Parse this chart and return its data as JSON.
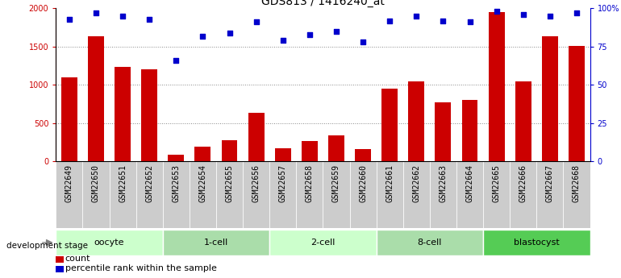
{
  "title": "GDS813 / 1416240_at",
  "samples": [
    "GSM22649",
    "GSM22650",
    "GSM22651",
    "GSM22652",
    "GSM22653",
    "GSM22654",
    "GSM22655",
    "GSM22656",
    "GSM22657",
    "GSM22658",
    "GSM22659",
    "GSM22660",
    "GSM22661",
    "GSM22662",
    "GSM22663",
    "GSM22664",
    "GSM22665",
    "GSM22666",
    "GSM22667",
    "GSM22668"
  ],
  "counts": [
    1100,
    1630,
    1230,
    1200,
    90,
    190,
    270,
    630,
    170,
    260,
    340,
    160,
    950,
    1040,
    770,
    800,
    1950,
    1040,
    1640,
    1510
  ],
  "percentiles": [
    93,
    97,
    95,
    93,
    66,
    82,
    84,
    91,
    79,
    83,
    85,
    78,
    92,
    95,
    92,
    91,
    98,
    96,
    95,
    97
  ],
  "groups": [
    {
      "label": "oocyte",
      "start": 0,
      "end": 4,
      "color": "#ccffcc"
    },
    {
      "label": "1-cell",
      "start": 4,
      "end": 8,
      "color": "#aaddaa"
    },
    {
      "label": "2-cell",
      "start": 8,
      "end": 12,
      "color": "#ccffcc"
    },
    {
      "label": "8-cell",
      "start": 12,
      "end": 16,
      "color": "#aaddaa"
    },
    {
      "label": "blastocyst",
      "start": 16,
      "end": 20,
      "color": "#55cc55"
    }
  ],
  "bar_color": "#cc0000",
  "dot_color": "#0000cc",
  "ylim_left": [
    0,
    2000
  ],
  "ylim_right": [
    0,
    100
  ],
  "yticks_left": [
    0,
    500,
    1000,
    1500,
    2000
  ],
  "ytick_labels_left": [
    "0",
    "500",
    "1000",
    "1500",
    "2000"
  ],
  "yticks_right": [
    0,
    25,
    50,
    75,
    100
  ],
  "ytick_labels_right": [
    "0",
    "25",
    "50",
    "75",
    "100%"
  ],
  "legend_count_label": "count",
  "legend_pct_label": "percentile rank within the sample",
  "dev_stage_label": "development stage",
  "background_color": "#ffffff",
  "grid_color": "#888888",
  "sample_box_color": "#cccccc",
  "title_fontsize": 10,
  "tick_fontsize": 7,
  "label_fontsize": 8
}
